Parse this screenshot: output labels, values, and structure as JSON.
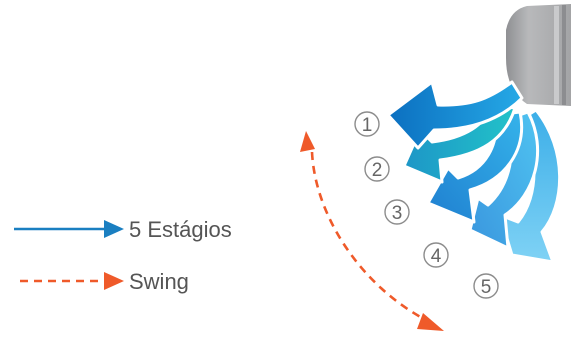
{
  "legend": {
    "stages_label": "5 Estágios",
    "swing_label": "Swing"
  },
  "stage_numbers": [
    "1",
    "2",
    "3",
    "4",
    "5"
  ],
  "colors": {
    "stages_line": "#1a7fc1",
    "swing_line": "#ef5a2a",
    "unit_body": "#a9aaac",
    "circle_stroke": "#8c8c8c",
    "text": "#555555"
  }
}
